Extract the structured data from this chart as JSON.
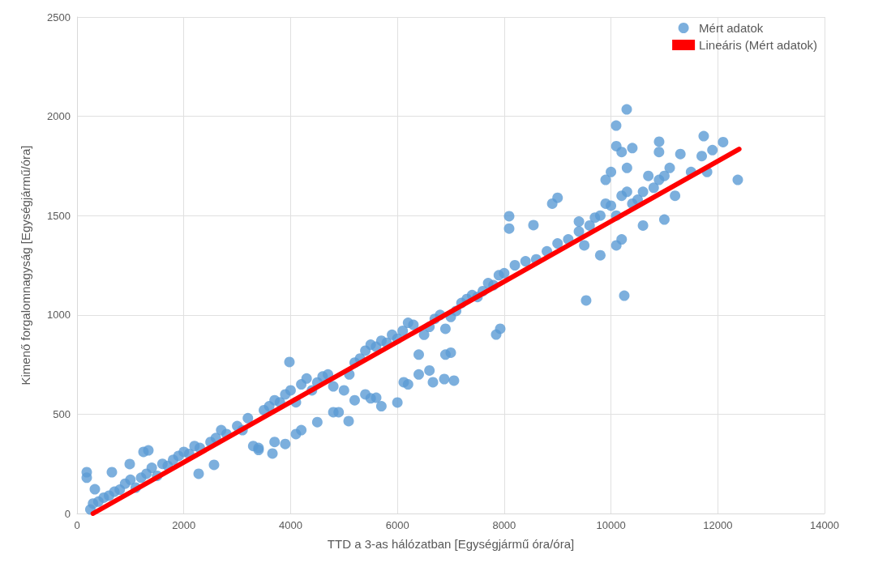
{
  "chart_data": {
    "type": "scatter",
    "xlabel": "TTD a 3-as hálózatban [Egységjármű óra/óra]",
    "ylabel": "Kimenő forgalomnagyság [Egységjármű/óra]",
    "xlim": [
      0,
      14000
    ],
    "xticks": [
      0,
      2000,
      4000,
      6000,
      8000,
      10000,
      12000,
      14000
    ],
    "ylim": [
      0,
      2500
    ],
    "yticks": [
      0,
      500,
      1000,
      1500,
      2000,
      2500
    ],
    "grid": true,
    "legend": "top right",
    "series": [
      {
        "name": "Mért adatok",
        "color": "#5b9bd5",
        "marker": "circle",
        "x": [
          182,
          182,
          334,
          653,
          987,
          1245,
          1336,
          3978,
          5087,
          10295,
          10097,
          10902,
          11737,
          12375,
          10249,
          9535,
          8093,
          8093,
          8548,
          7926,
          7850,
          7060,
          6878,
          6666,
          6119,
          6000,
          5603,
          3660,
          2278,
          2566,
          250,
          300,
          400,
          500,
          600,
          700,
          800,
          900,
          1000,
          1100,
          1200,
          1300,
          1400,
          1500,
          1600,
          1700,
          1800,
          1900,
          2000,
          2100,
          2200,
          2300,
          2500,
          2600,
          2700,
          2800,
          3000,
          3100,
          3200,
          3300,
          3400,
          3500,
          3600,
          3700,
          3800,
          3900,
          4000,
          4100,
          4200,
          4300,
          4400,
          4500,
          4600,
          4700,
          4800,
          4900,
          5000,
          5100,
          5200,
          5300,
          5400,
          5500,
          5600,
          5700,
          5800,
          5900,
          6000,
          6100,
          6200,
          6300,
          6400,
          6500,
          6600,
          6700,
          6800,
          6900,
          7000,
          7100,
          7200,
          7300,
          7400,
          7500,
          7600,
          7700,
          7800,
          7900,
          8000,
          8200,
          8400,
          8600,
          8800,
          9000,
          9200,
          9400,
          9500,
          9600,
          9700,
          9800,
          9900,
          10000,
          10100,
          10200,
          10300,
          10400,
          10500,
          10600,
          10700,
          10800,
          10900,
          11000,
          11100,
          11200,
          11300,
          11500,
          11700,
          11900,
          12100,
          4800,
          5200,
          5400,
          5500,
          5700,
          6200,
          6400,
          6600,
          6900,
          7000,
          3400,
          3700,
          3900,
          4100,
          4200,
          4500,
          9000,
          8900,
          9400,
          10000,
          10100,
          10200,
          10400,
          10300,
          9800,
          10100,
          10200,
          9900,
          11000,
          10600,
          10900,
          11800
        ],
        "values": [
          208,
          180,
          122,
          208,
          249,
          310,
          318,
          763,
          465,
          2035,
          1953,
          1872,
          1900,
          1680,
          1097,
          1073,
          1435,
          1497,
          1452,
          930,
          901,
          669,
          677,
          661,
          661,
          559,
          583,
          302,
          200,
          245,
          20,
          50,
          60,
          80,
          90,
          110,
          120,
          150,
          170,
          130,
          180,
          200,
          230,
          190,
          250,
          240,
          270,
          290,
          310,
          300,
          340,
          330,
          360,
          380,
          420,
          400,
          440,
          420,
          480,
          340,
          330,
          520,
          540,
          570,
          560,
          600,
          620,
          560,
          650,
          680,
          620,
          660,
          690,
          700,
          640,
          510,
          620,
          700,
          760,
          780,
          820,
          850,
          840,
          870,
          860,
          900,
          880,
          920,
          960,
          950,
          800,
          900,
          940,
          980,
          1000,
          930,
          990,
          1020,
          1060,
          1080,
          1100,
          1090,
          1120,
          1160,
          1150,
          1200,
          1210,
          1250,
          1270,
          1280,
          1320,
          1360,
          1380,
          1420,
          1350,
          1450,
          1490,
          1500,
          1560,
          1550,
          1500,
          1600,
          1620,
          1560,
          1580,
          1620,
          1700,
          1640,
          1680,
          1700,
          1740,
          1600,
          1810,
          1720,
          1800,
          1830,
          1870,
          510,
          570,
          600,
          580,
          540,
          650,
          700,
          720,
          800,
          810,
          320,
          360,
          350,
          400,
          420,
          460,
          1590,
          1560,
          1470,
          1720,
          1850,
          1820,
          1840,
          1740,
          1300,
          1350,
          1380,
          1680,
          1480,
          1450,
          1820,
          1720
        ]
      },
      {
        "name": "Lineáris (Mért adatok)",
        "type": "line",
        "color": "#ff0000",
        "marker": "none",
        "line_style": "solid",
        "x": [
          300,
          12400
        ],
        "values": [
          0,
          1835
        ]
      }
    ]
  }
}
